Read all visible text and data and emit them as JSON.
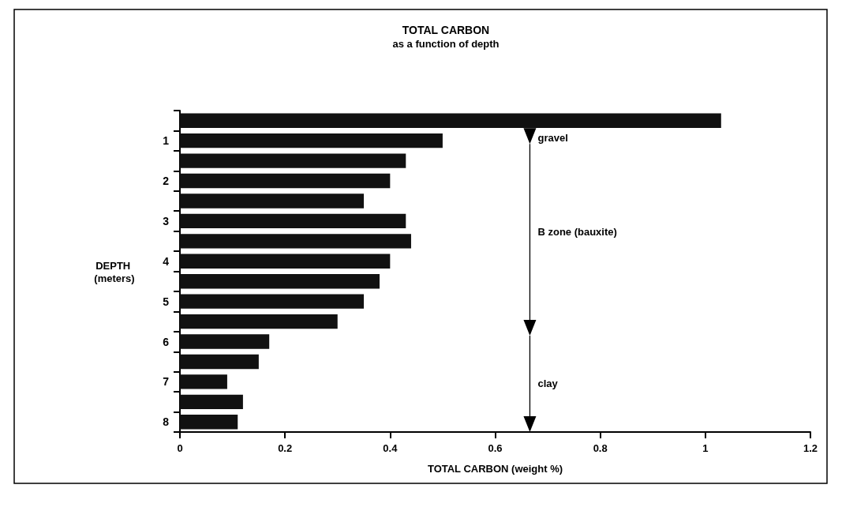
{
  "chart_data": {
    "type": "bar",
    "orientation": "horizontal",
    "title": "TOTAL CARBON",
    "subtitle": "as a function of depth",
    "xlabel": "TOTAL CARBON (weight %)",
    "ylabel": "DEPTH (meters)",
    "categories": [
      null,
      "1",
      null,
      "2",
      null,
      "3",
      null,
      "4",
      null,
      "5",
      null,
      "6",
      null,
      "7",
      null,
      "8"
    ],
    "values": [
      1.03,
      0.5,
      0.43,
      0.4,
      0.35,
      0.43,
      0.44,
      0.4,
      0.38,
      0.35,
      0.3,
      0.17,
      0.15,
      0.09,
      0.12,
      0.11
    ],
    "color": "#111111",
    "xlim": [
      0,
      1.2
    ],
    "xticks": [
      0,
      0.2,
      0.4,
      0.6,
      0.8,
      1,
      1.2
    ],
    "grid": false,
    "annotations": [
      "gravel",
      "B zone (bauxite)",
      "clay"
    ]
  }
}
